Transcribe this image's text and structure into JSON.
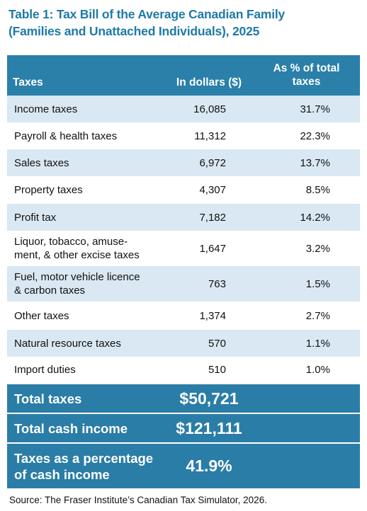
{
  "title": [
    "Table 1: Tax Bill of the Average Canadian Family",
    "(Families and Unattached Individuals), 2025"
  ],
  "table": {
    "header": {
      "taxes": "Taxes",
      "dollars": "In dollars ($)",
      "percent": [
        "As % of total",
        "taxes"
      ]
    },
    "rows": [
      [
        "Income taxes",
        "16,085",
        "31.7%"
      ],
      [
        "Payroll & health taxes",
        "11,312",
        "22.3%"
      ],
      [
        "Sales taxes",
        "6,972",
        "13.7%"
      ],
      [
        "Property taxes",
        "4,307",
        "8.5%"
      ],
      [
        "Profit tax",
        "7,182",
        "14.2%"
      ],
      [
        [
          "Liquor, tobacco, amuse-",
          "ment, & other excise taxes"
        ],
        "1,647",
        "3.2%"
      ],
      [
        [
          "Fuel, motor vehicle licence",
          "& carbon taxes"
        ],
        "763",
        "1.5%"
      ],
      [
        "Other taxes",
        "1,374",
        "2.7%"
      ],
      [
        "Natural resource taxes",
        "570",
        "1.1%"
      ],
      [
        "Import duties",
        "510",
        "1.0%"
      ]
    ],
    "totals": [
      {
        "label": "Total taxes",
        "value": "$50,721"
      },
      {
        "label": "Total cash income",
        "value": "$121,111"
      },
      {
        "label": [
          "Taxes as a percentage",
          "of cash income"
        ],
        "value": "41.9%"
      }
    ]
  },
  "source": "Source: The Fraser Institute’s Canadian Tax Simulator, 2026."
}
